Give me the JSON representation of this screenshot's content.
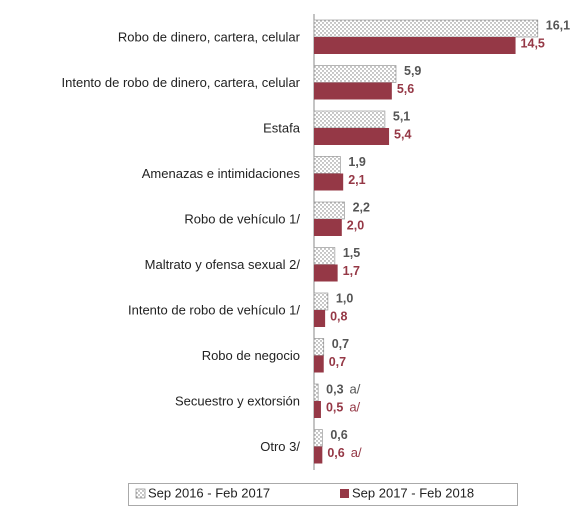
{
  "chart_data": {
    "type": "bar",
    "orientation": "horizontal",
    "categories": [
      "Robo de dinero, cartera, celular",
      "Intento de robo de dinero, cartera, celular",
      "Estafa",
      "Amenazas e intimidaciones",
      "Robo  de vehículo 1/",
      "Maltrato y ofensa sexual 2/",
      "Intento de robo de vehículo 1/",
      "Robo de negocio",
      "Secuestro y extorsión",
      "Otro 3/"
    ],
    "series": [
      {
        "name": "Sep 2016 - Feb 2017",
        "color": "#d9d9d9",
        "pattern": "dotted",
        "values": [
          16.1,
          5.9,
          5.1,
          1.9,
          2.2,
          1.5,
          1.0,
          0.7,
          0.3,
          0.6
        ],
        "value_labels": [
          "16,1",
          "5,9",
          "5,1",
          "1,9",
          "2,2",
          "1,5",
          "1,0",
          "0,7",
          "0,3",
          "0,6"
        ]
      },
      {
        "name": "Sep 2017 - Feb 2018",
        "color": "#953846",
        "values": [
          14.5,
          5.6,
          5.4,
          2.1,
          2.0,
          1.7,
          0.8,
          0.7,
          0.5,
          0.6
        ],
        "value_labels": [
          "14,5",
          "5,6",
          "5,4",
          "2,1",
          "2,0",
          "1,7",
          "0,8",
          "0,7",
          "0,5",
          "0,6"
        ]
      }
    ],
    "annotations": [
      {
        "text": "a/",
        "series": 0,
        "index": 8
      },
      {
        "text": "a/",
        "series": 1,
        "index": 8
      },
      {
        "text": "a/",
        "series": 1,
        "index": 9
      }
    ],
    "legend": "bottom"
  }
}
